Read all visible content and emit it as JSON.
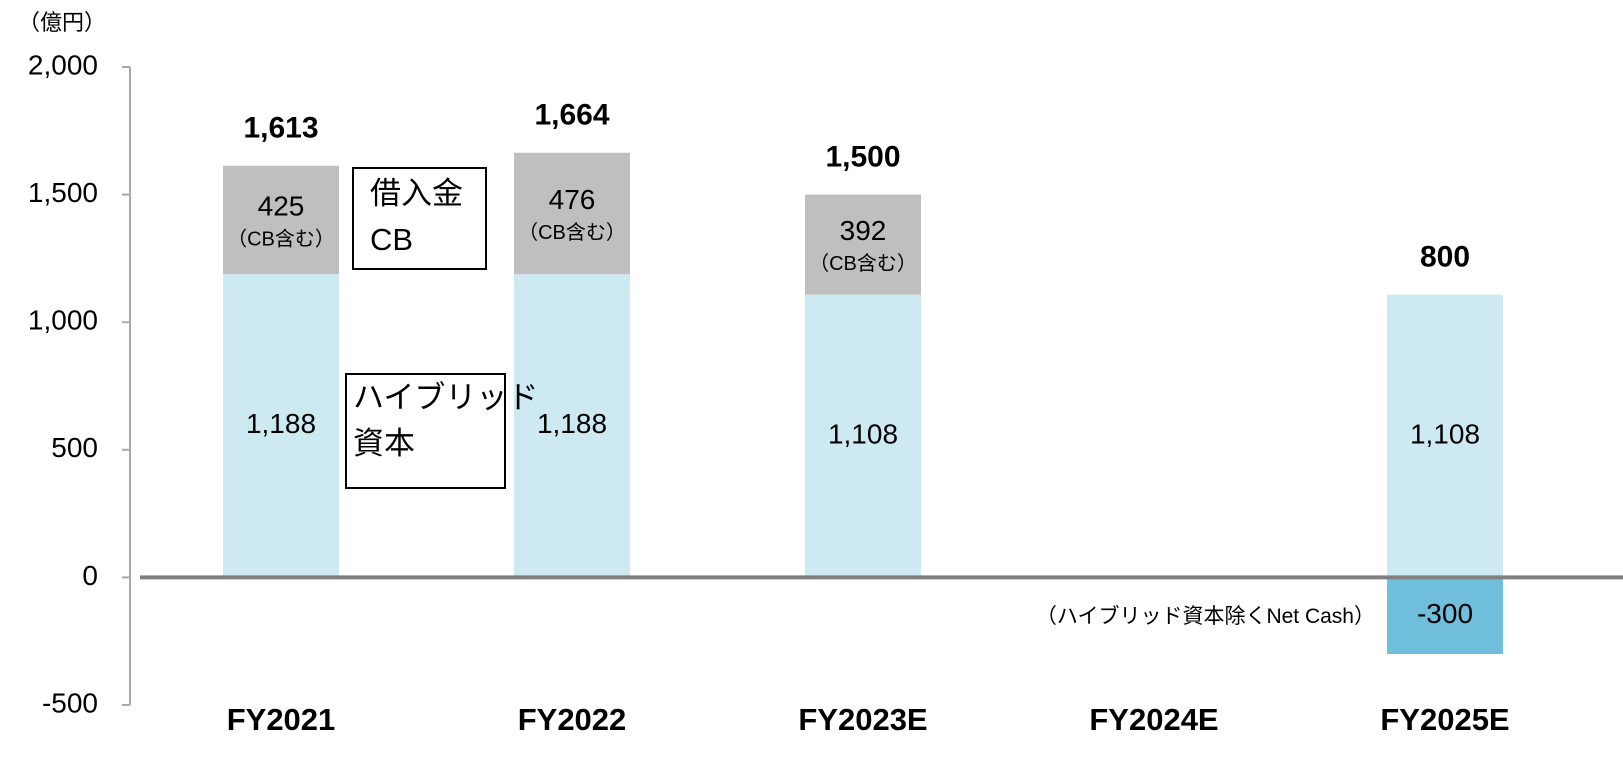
{
  "chart_data": {
    "type": "bar",
    "stacked": true,
    "unit_label": "（億円）",
    "categories": [
      "FY2021",
      "FY2022",
      "FY2023E",
      "FY2024E",
      "FY2025E"
    ],
    "series": [
      {
        "name": "ハイブリッド\n資本",
        "color": "#cdeaf2",
        "values": [
          1188,
          1188,
          1108,
          null,
          1108
        ],
        "value_labels": [
          "1,188",
          "1,188",
          "1,108",
          null,
          "1,108"
        ]
      },
      {
        "name": "借入金\nCB",
        "color": "#bfbfbf",
        "values": [
          425,
          476,
          392,
          null,
          null
        ],
        "value_labels": [
          "425",
          "476",
          "392",
          null,
          null
        ]
      },
      {
        "name": "（ハイブリッド資本除くNet Cash）",
        "color": "#6fbfdc",
        "values": [
          null,
          null,
          null,
          null,
          -300
        ],
        "value_labels": [
          null,
          null,
          null,
          null,
          "-300"
        ]
      }
    ],
    "segment_note": "（CB含む）",
    "totals": [
      1613,
      1664,
      1500,
      null,
      800
    ],
    "total_labels": [
      "1,613",
      "1,664",
      "1,500",
      null,
      "800"
    ],
    "ylim": [
      -500,
      2000
    ],
    "yticks": [
      {
        "value": 2000,
        "label": "2,000"
      },
      {
        "value": 1500,
        "label": "1,500"
      },
      {
        "value": 1000,
        "label": "1,000"
      },
      500,
      0,
      -500
    ]
  }
}
